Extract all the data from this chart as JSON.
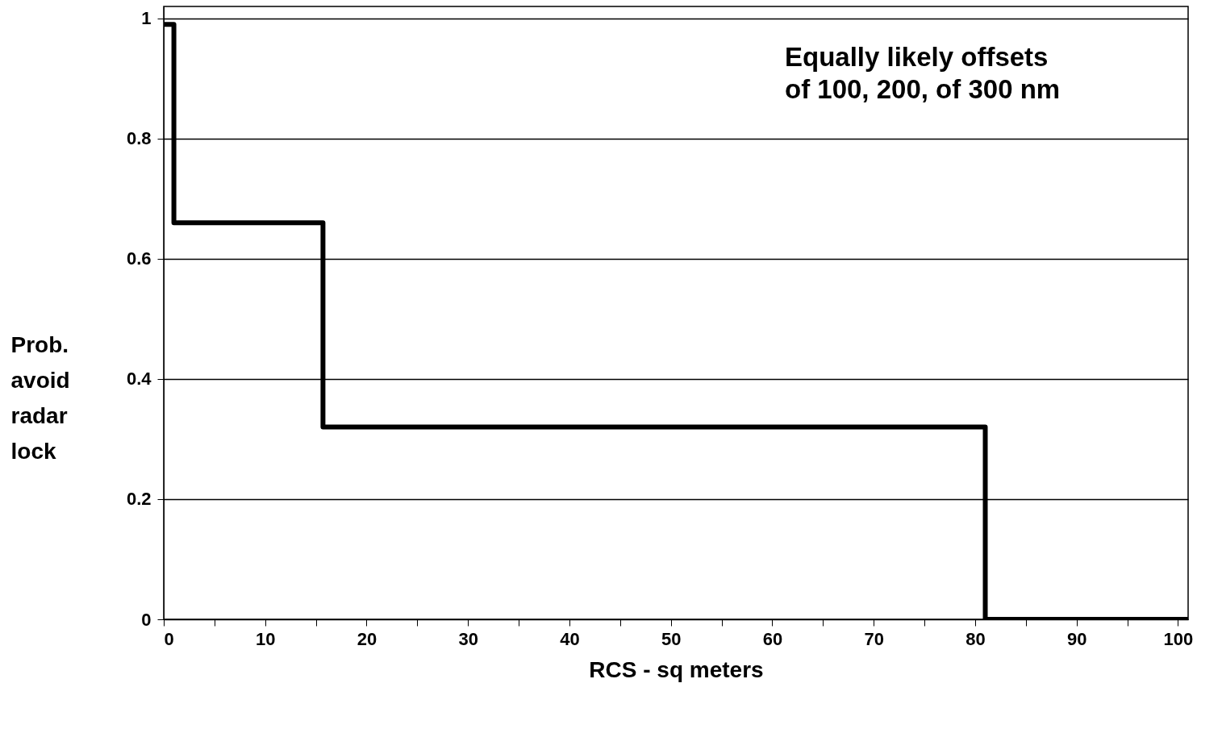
{
  "chart_data": {
    "type": "step",
    "xlabel": "RCS - sq meters",
    "ylabel": "Prob. avoid radar lock",
    "annotations": [
      "Equally likely offsets of 100, 200, of 300 nm"
    ],
    "x": [
      0,
      1,
      15.7,
      81,
      101
    ],
    "series": [
      {
        "color": "#000000",
        "values": [
          0.99,
          0.66,
          0.32,
          0,
          0
        ]
      }
    ],
    "xlim": [
      0,
      101
    ],
    "ylim": [
      0,
      1.02
    ],
    "xticks": [
      0,
      {
        "value": 5,
        "label": null
      },
      10,
      {
        "value": 15,
        "label": null
      },
      20,
      {
        "value": 25,
        "label": null
      },
      30,
      {
        "value": 35,
        "label": null
      },
      40,
      {
        "value": 45,
        "label": null
      },
      50,
      {
        "value": 55,
        "label": null
      },
      60,
      {
        "value": 65,
        "label": null
      },
      70,
      {
        "value": 75,
        "label": null
      },
      80,
      {
        "value": 85,
        "label": null
      },
      90,
      {
        "value": 95,
        "label": null
      },
      100
    ],
    "yticks": [
      0,
      0.2,
      0.4,
      0.6,
      0.8,
      1
    ],
    "grid": "y",
    "marker": "none",
    "line_style": "solid"
  }
}
